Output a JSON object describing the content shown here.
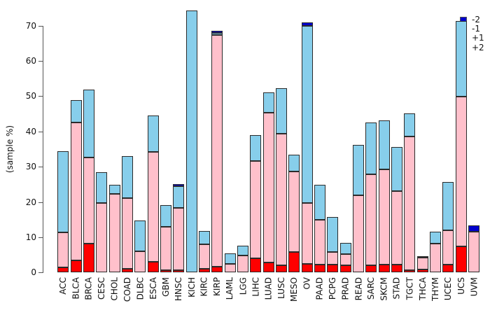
{
  "chart_data": {
    "type": "bar",
    "stacked": true,
    "title": "",
    "ylabel": "(sample %)",
    "xlabel": "",
    "y_ticks": [
      0,
      10,
      20,
      30,
      40,
      50,
      60,
      70
    ],
    "ylim": [
      0,
      75
    ],
    "grid": false,
    "legend_position": "top-right",
    "legend": [
      {
        "label": "-2",
        "color": "#0000CD"
      },
      {
        "label": "-1",
        "color": "#87CEEB"
      },
      {
        "label": "+1",
        "color": "#FFC0CB"
      },
      {
        "label": "+2",
        "color": "#FF0000"
      }
    ],
    "categories": [
      "ACC",
      "BLCA",
      "BRCA",
      "CESC",
      "CHOL",
      "COAD",
      "DLBC",
      "ESCA",
      "GBM",
      "HNSC",
      "KICH",
      "KIRC",
      "KIRP",
      "LAML",
      "LGG",
      "LIHC",
      "LUAD",
      "LUSC",
      "MESO",
      "OV",
      "PAAD",
      "PCPG",
      "PRAD",
      "READ",
      "SARC",
      "SKCM",
      "STAD",
      "TGCT",
      "THCA",
      "THYM",
      "UCEC",
      "UCS",
      "UVM"
    ],
    "series": [
      {
        "name": "+2",
        "color": "#FF0000",
        "values": [
          1.4,
          3.5,
          8.2,
          0,
          0,
          1.0,
          0,
          3.1,
          0.7,
          0.6,
          0,
          1.0,
          1.7,
          0,
          0,
          4.0,
          2.8,
          2.1,
          5.9,
          2.5,
          2.2,
          2.2,
          2.0,
          0,
          2.1,
          2.2,
          2.2,
          0.7,
          0.8,
          0,
          2.2,
          7.4,
          0
        ]
      },
      {
        "name": "+1",
        "color": "#FFC0CB",
        "values": [
          9.9,
          39.0,
          24.5,
          19.8,
          22.3,
          20.1,
          6.1,
          31.1,
          12.3,
          17.7,
          0,
          6.9,
          65.6,
          2.4,
          4.8,
          27.7,
          42.6,
          37.3,
          22.8,
          17.3,
          12.8,
          3.7,
          3.2,
          21.8,
          25.8,
          27.0,
          20.9,
          37.9,
          3.4,
          8.2,
          9.8,
          42.5,
          11.6
        ]
      },
      {
        "name": "-1",
        "color": "#87CEEB",
        "values": [
          23.0,
          6.4,
          19.2,
          8.6,
          2.6,
          11.9,
          8.7,
          10.4,
          6.2,
          6.2,
          74.2,
          3.9,
          0.7,
          3.0,
          2.8,
          7.3,
          5.7,
          12.8,
          4.8,
          50.1,
          9.9,
          9.8,
          3.2,
          14.4,
          14.6,
          13.9,
          12.4,
          6.6,
          0.5,
          3.3,
          13.7,
          21.5,
          0
        ]
      },
      {
        "name": "-2",
        "color": "#0000CD",
        "values": [
          0,
          0,
          0,
          0,
          0,
          0,
          0,
          0,
          0,
          0.6,
          0,
          0,
          0.5,
          0,
          0,
          0,
          0,
          0,
          0,
          1.0,
          0,
          0,
          0,
          0,
          0,
          0,
          0,
          0,
          0,
          0,
          0,
          0,
          1.8
        ]
      }
    ]
  }
}
